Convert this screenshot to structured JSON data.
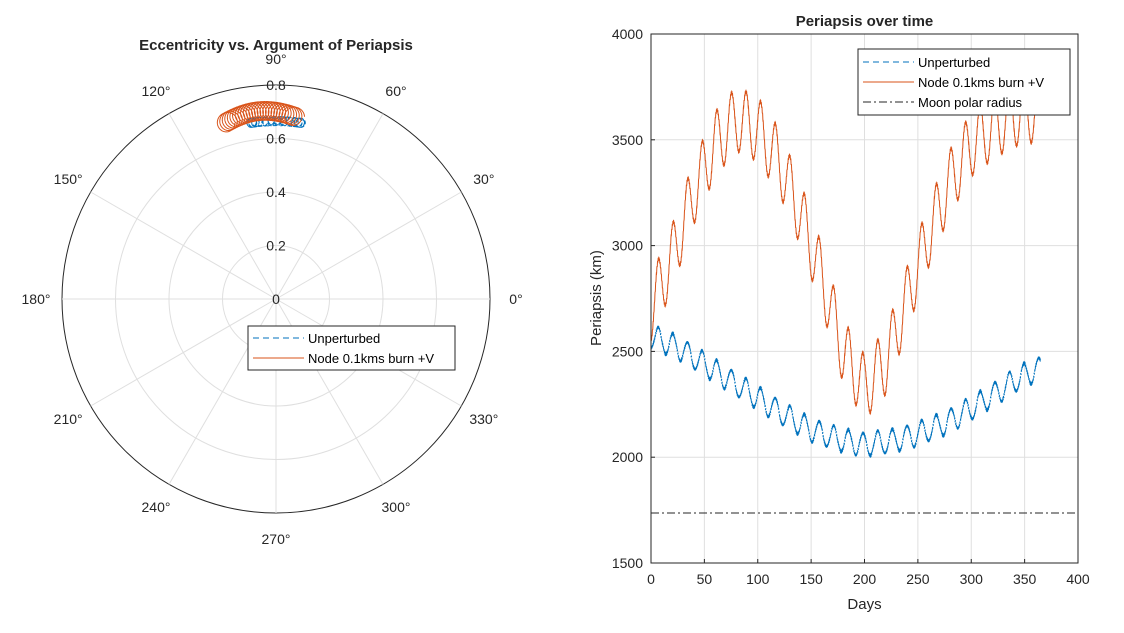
{
  "chart_data": [
    {
      "type": "polar",
      "title": "Eccentricity vs. Argument of Periapsis",
      "theta_ticks_deg": [
        0,
        30,
        60,
        90,
        120,
        150,
        180,
        210,
        240,
        270,
        300,
        330
      ],
      "theta_tick_labels": [
        "0°",
        "30°",
        "60°",
        "90°",
        "120°",
        "150°",
        "180°",
        "210°",
        "240°",
        "270°",
        "300°",
        "330°"
      ],
      "r_ticks": [
        0,
        0.2,
        0.4,
        0.6,
        0.8
      ],
      "r_tick_labels": [
        "0",
        "0.2",
        "0.4",
        "0.6",
        "0.8"
      ],
      "rlim": [
        0,
        0.8
      ],
      "grid": true,
      "legend": {
        "placement": "center-right",
        "entries": [
          "Unperturbed",
          "Node 0.1kms burn +V"
        ]
      },
      "series": [
        {
          "name": "Unperturbed",
          "color": "#0072bd",
          "style": "dashed",
          "path_model": {
            "type": "epicycle",
            "theta_deg": 90,
            "ecc": 0.665,
            "loop_radius": 0.017,
            "loop_count": 24,
            "theta_span_deg": 8
          }
        },
        {
          "name": "Node 0.1kms burn +V",
          "color": "#d95319",
          "style": "solid",
          "path_model": {
            "type": "epicycle",
            "theta_deg_start": 106,
            "theta_deg_end": 84,
            "ecc_start": 0.685,
            "ecc_mid": 0.705,
            "loop_radius": 0.035,
            "loop_count": 26
          }
        }
      ]
    },
    {
      "type": "line",
      "title": "Periapsis over time",
      "xlabel": "Days",
      "ylabel": "Periapsis (km)",
      "xlim": [
        0,
        400
      ],
      "ylim": [
        1500,
        4000
      ],
      "xticks": [
        0,
        50,
        100,
        150,
        200,
        250,
        300,
        350,
        400
      ],
      "yticks": [
        1500,
        2000,
        2500,
        3000,
        3500,
        4000
      ],
      "grid": true,
      "legend": {
        "placement": "top-right",
        "entries": [
          "Unperturbed",
          "Node 0.1kms burn +V",
          "Moon polar radius"
        ]
      },
      "series": [
        {
          "name": "Unperturbed",
          "color": "#0072bd",
          "style": "dashed",
          "x_end": 365,
          "trend": {
            "x": [
              0,
              25,
              50,
              75,
              100,
              125,
              150,
              175,
              200,
              225,
              250,
              275,
              300,
              325,
              350,
              365
            ],
            "y": [
              2570,
              2520,
              2440,
              2360,
              2280,
              2200,
              2130,
              2085,
              2060,
              2075,
              2110,
              2160,
              2230,
              2310,
              2390,
              2420
            ]
          },
          "oscillation": {
            "amplitude": 55,
            "period_days": 13.7
          }
        },
        {
          "name": "Node 0.1kms burn +V",
          "color": "#d95319",
          "style": "solid",
          "x_end": 365,
          "trend": {
            "x": [
              0,
              20,
              40,
              60,
              80,
              100,
              120,
              140,
              160,
              180,
              200,
              220,
              240,
              260,
              280,
              300,
              320,
              340,
              360,
              365
            ],
            "y": [
              2700,
              2950,
              3250,
              3480,
              3600,
              3550,
              3400,
              3150,
              2850,
              2500,
              2330,
              2450,
              2750,
              3050,
              3300,
              3480,
              3560,
              3620,
              3640,
              3560
            ]
          },
          "oscillation": {
            "amplitude": 150,
            "period_days": 13.7
          }
        },
        {
          "name": "Moon polar radius",
          "color": "#262626",
          "style": "dashdot",
          "x": [
            0,
            400
          ],
          "y": [
            1736,
            1736
          ]
        }
      ]
    }
  ]
}
